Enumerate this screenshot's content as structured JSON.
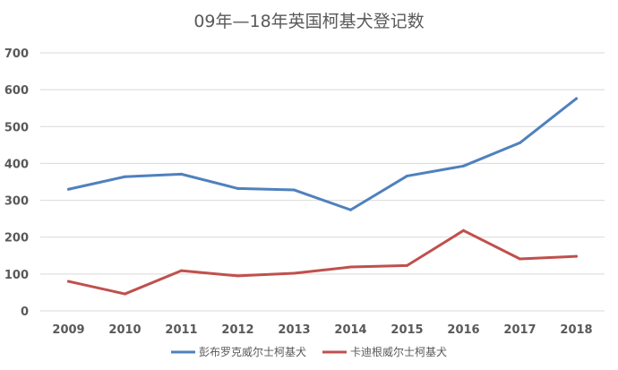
{
  "chart_data": {
    "type": "line",
    "title": "09年—18年英国柯基犬登记数",
    "categories": [
      "2009",
      "2010",
      "2011",
      "2012",
      "2013",
      "2014",
      "2015",
      "2016",
      "2017",
      "2018"
    ],
    "series": [
      {
        "name": "彭布罗克威尔士柯基犬",
        "color": "#4f81bd",
        "values": [
          330,
          364,
          371,
          332,
          328,
          274,
          366,
          393,
          456,
          576
        ]
      },
      {
        "name": "卡迪根威尔士柯基犬",
        "color": "#c0504d",
        "values": [
          80,
          46,
          109,
          95,
          102,
          119,
          123,
          218,
          141,
          148
        ]
      }
    ],
    "ylim": [
      0,
      700
    ],
    "yticks": [
      "0",
      "100",
      "200",
      "300",
      "400",
      "500",
      "600",
      "700"
    ],
    "grid": true,
    "legend": "bottom"
  }
}
